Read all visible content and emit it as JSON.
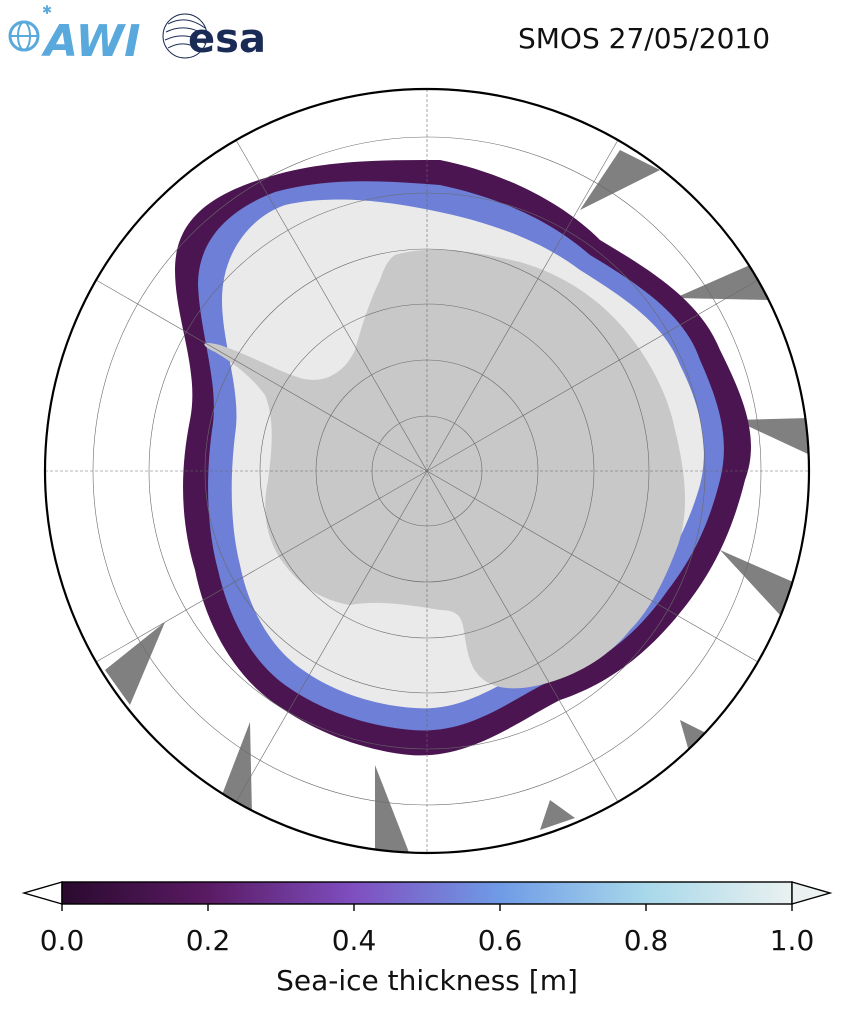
{
  "header": {
    "title": "SMOS 27/05/2010"
  },
  "logos": {
    "left": "AWI",
    "right": "esa"
  },
  "colorbar": {
    "label": "Sea-ice thickness [m]",
    "ticks": [
      "0.0",
      "0.2",
      "0.4",
      "0.6",
      "0.8",
      "1.0"
    ],
    "range": [
      0.0,
      1.0
    ],
    "extend": "both",
    "colors": [
      "#2a0a2e",
      "#5a1a64",
      "#7f4fc0",
      "#6f9be6",
      "#a8d8ea",
      "#eaf1f0"
    ]
  },
  "map": {
    "projection": "south-polar-stereographic",
    "land_color": "#c8c8c8",
    "no_data_color": "#808080",
    "thick_ice_color": "#eaeaea",
    "grid": true
  }
}
